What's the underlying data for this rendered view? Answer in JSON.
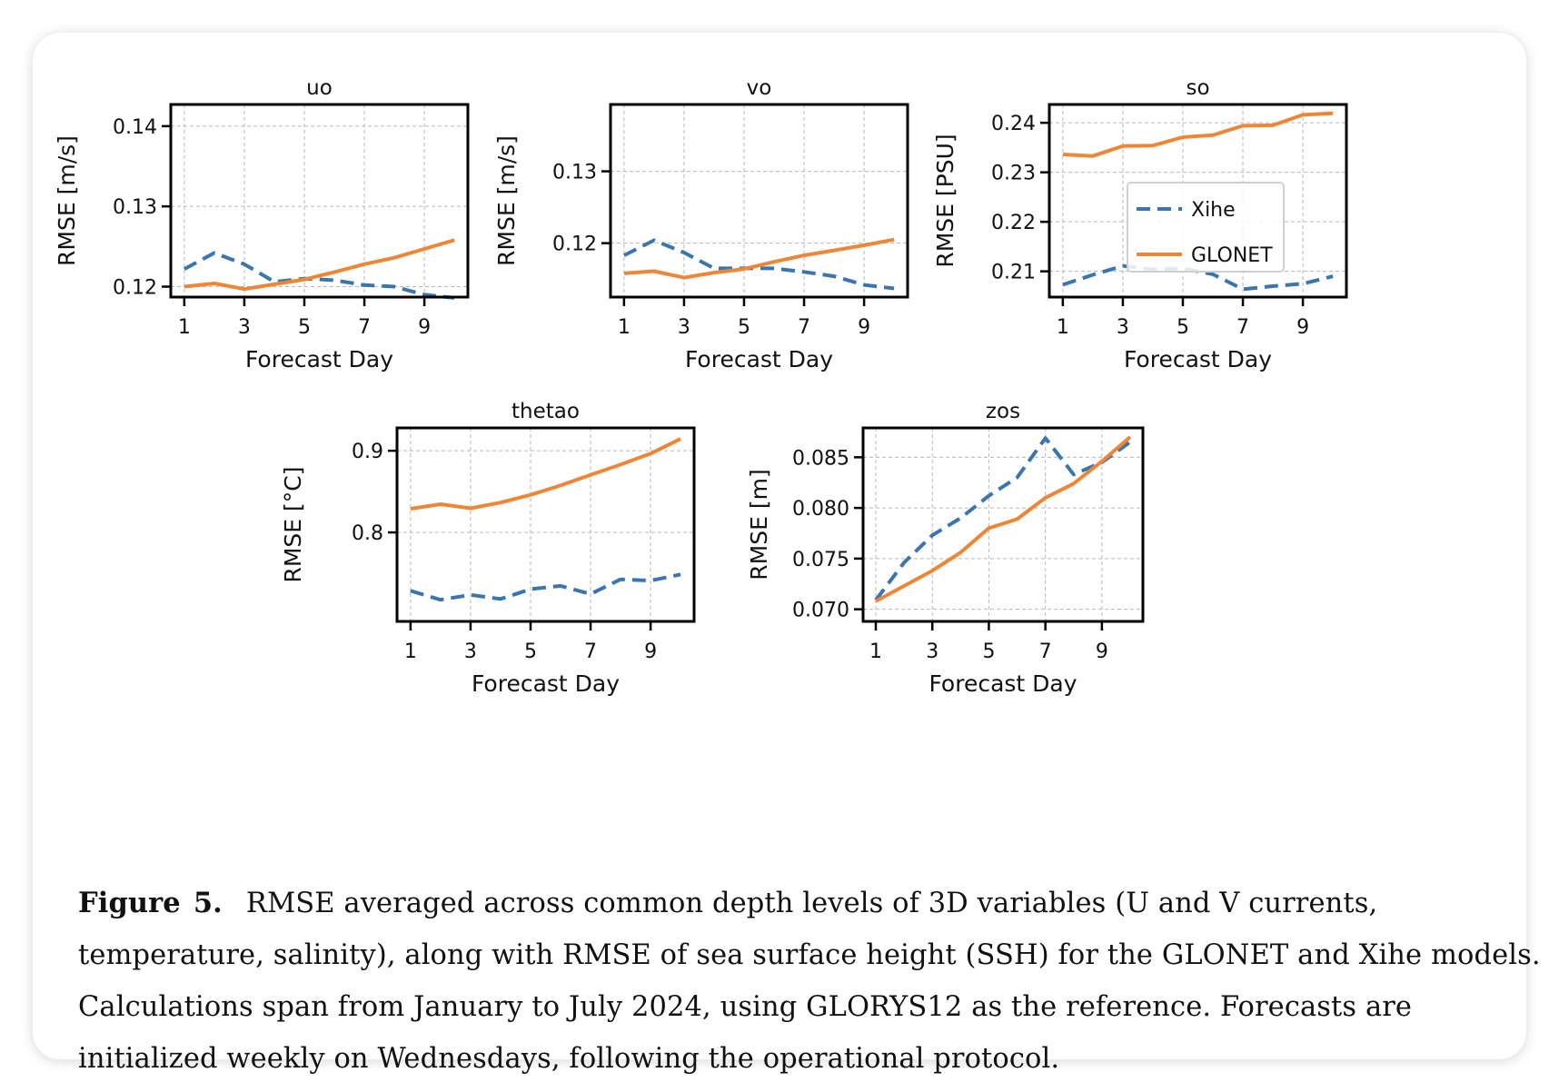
{
  "chart_data": [
    {
      "type": "line",
      "title": "uo",
      "xlabel": "Forecast Day",
      "ylabel": "RMSE [m/s]",
      "x": [
        1,
        2,
        3,
        4,
        5,
        6,
        7,
        8,
        9,
        10
      ],
      "xticks": [
        1,
        3,
        5,
        7,
        9
      ],
      "yticks": [
        0.12,
        0.13,
        0.14
      ],
      "ytick_labels": [
        "0.12",
        "0.13",
        "0.14"
      ],
      "xlim": [
        0.55,
        10.45
      ],
      "ylim": [
        0.1187,
        0.1427
      ],
      "grid": true,
      "series": [
        {
          "name": "Xihe",
          "style": "dashed",
          "values": [
            0.1222,
            0.1242,
            0.1228,
            0.1206,
            0.121,
            0.1208,
            0.1202,
            0.12,
            0.119,
            0.1186
          ]
        },
        {
          "name": "GLONET",
          "style": "solid",
          "values": [
            0.12,
            0.1204,
            0.1197,
            0.1203,
            0.1209,
            0.1218,
            0.1228,
            0.1236,
            0.1247,
            0.1258
          ]
        }
      ]
    },
    {
      "type": "line",
      "title": "vo",
      "xlabel": "Forecast Day",
      "ylabel": "RMSE [m/s]",
      "x": [
        1,
        2,
        3,
        4,
        5,
        6,
        7,
        8,
        9,
        10
      ],
      "xticks": [
        1,
        3,
        5,
        7,
        9
      ],
      "yticks": [
        0.12,
        0.13
      ],
      "ytick_labels": [
        "0.12",
        "0.13"
      ],
      "xlim": [
        0.55,
        10.45
      ],
      "ylim": [
        0.1125,
        0.1393
      ],
      "grid": true,
      "series": [
        {
          "name": "Xihe",
          "style": "dashed",
          "values": [
            0.1183,
            0.1204,
            0.1187,
            0.1165,
            0.1165,
            0.1165,
            0.116,
            0.1154,
            0.1142,
            0.1137
          ]
        },
        {
          "name": "GLONET",
          "style": "solid",
          "values": [
            0.1158,
            0.1161,
            0.1152,
            0.1159,
            0.1164,
            0.1174,
            0.1183,
            0.119,
            0.1197,
            0.1205
          ]
        }
      ]
    },
    {
      "type": "line",
      "title": "so",
      "xlabel": "Forecast Day",
      "ylabel": "RMSE [PSU]",
      "x": [
        1,
        2,
        3,
        4,
        5,
        6,
        7,
        8,
        9,
        10
      ],
      "xticks": [
        1,
        3,
        5,
        7,
        9
      ],
      "yticks": [
        0.21,
        0.22,
        0.23,
        0.24
      ],
      "ytick_labels": [
        "0.21",
        "0.22",
        "0.23",
        "0.24"
      ],
      "xlim": [
        0.55,
        10.45
      ],
      "ylim": [
        0.2048,
        0.2437
      ],
      "grid": true,
      "legend": "center-left",
      "series": [
        {
          "name": "Xihe",
          "style": "dashed",
          "values": [
            0.2073,
            0.2093,
            0.2111,
            0.2104,
            0.2106,
            0.2094,
            0.2064,
            0.207,
            0.2075,
            0.209
          ]
        },
        {
          "name": "GLONET",
          "style": "solid",
          "values": [
            0.2336,
            0.2333,
            0.2353,
            0.2354,
            0.2371,
            0.2375,
            0.2394,
            0.2395,
            0.2416,
            0.2419
          ]
        }
      ]
    },
    {
      "type": "line",
      "title": "thetao",
      "xlabel": "Forecast Day",
      "ylabel": "RMSE [$^{\\circ}$C]",
      "ylabel_display": "RMSE [°C]",
      "x": [
        1,
        2,
        3,
        4,
        5,
        6,
        7,
        8,
        9,
        10
      ],
      "xticks": [
        1,
        3,
        5,
        7,
        9
      ],
      "yticks": [
        0.8,
        0.9
      ],
      "ytick_labels": [
        "0.8",
        "0.9"
      ],
      "xlim": [
        0.55,
        10.45
      ],
      "ylim": [
        0.691,
        0.928
      ],
      "grid": true,
      "series": [
        {
          "name": "Xihe",
          "style": "dashed",
          "values": [
            0.7285,
            0.7175,
            0.7235,
            0.7185,
            0.7305,
            0.7345,
            0.7245,
            0.7425,
            0.741,
            0.7485
          ]
        },
        {
          "name": "GLONET",
          "style": "solid",
          "values": [
            0.829,
            0.8345,
            0.8295,
            0.8365,
            0.846,
            0.8575,
            0.8705,
            0.883,
            0.8965,
            0.9145
          ]
        }
      ]
    },
    {
      "type": "line",
      "title": "zos",
      "xlabel": "Forecast Day",
      "ylabel": "RMSE [m]",
      "x": [
        1,
        2,
        3,
        4,
        5,
        6,
        7,
        8,
        9,
        10
      ],
      "xticks": [
        1,
        3,
        5,
        7,
        9
      ],
      "yticks": [
        0.07,
        0.075,
        0.08,
        0.085
      ],
      "ytick_labels": [
        "0.070",
        "0.075",
        "0.080",
        "0.085"
      ],
      "xlim": [
        0.55,
        10.45
      ],
      "ylim": [
        0.0688,
        0.0879
      ],
      "grid": true,
      "series": [
        {
          "name": "Xihe",
          "style": "dashed",
          "values": [
            0.0709,
            0.0746,
            0.0773,
            0.079,
            0.0812,
            0.083,
            0.0869,
            0.0833,
            0.0845,
            0.0865
          ]
        },
        {
          "name": "GLONET",
          "style": "solid",
          "values": [
            0.0708,
            0.0723,
            0.0738,
            0.0756,
            0.078,
            0.0789,
            0.081,
            0.0824,
            0.0846,
            0.087
          ]
        }
      ]
    }
  ],
  "legend": {
    "entries": [
      {
        "label": "Xihe",
        "color": "#3b75af",
        "style": "dashed"
      },
      {
        "label": "GLONET",
        "color": "#ef8636",
        "style": "solid"
      }
    ]
  },
  "colors": {
    "xihe": "#3b75af",
    "glonet": "#ef8636"
  },
  "caption": {
    "label": "Figure",
    "number": "5.",
    "text": "RMSE averaged across common depth levels of 3D variables (U and V currents, temperature, salinity), along with RMSE of sea surface height (SSH) for the GLONET and Xihe models. Calculations span from January to July 2024, using GLORYS12 as the reference. Forecasts are initialized weekly on Wednesdays, following the operational protocol."
  }
}
